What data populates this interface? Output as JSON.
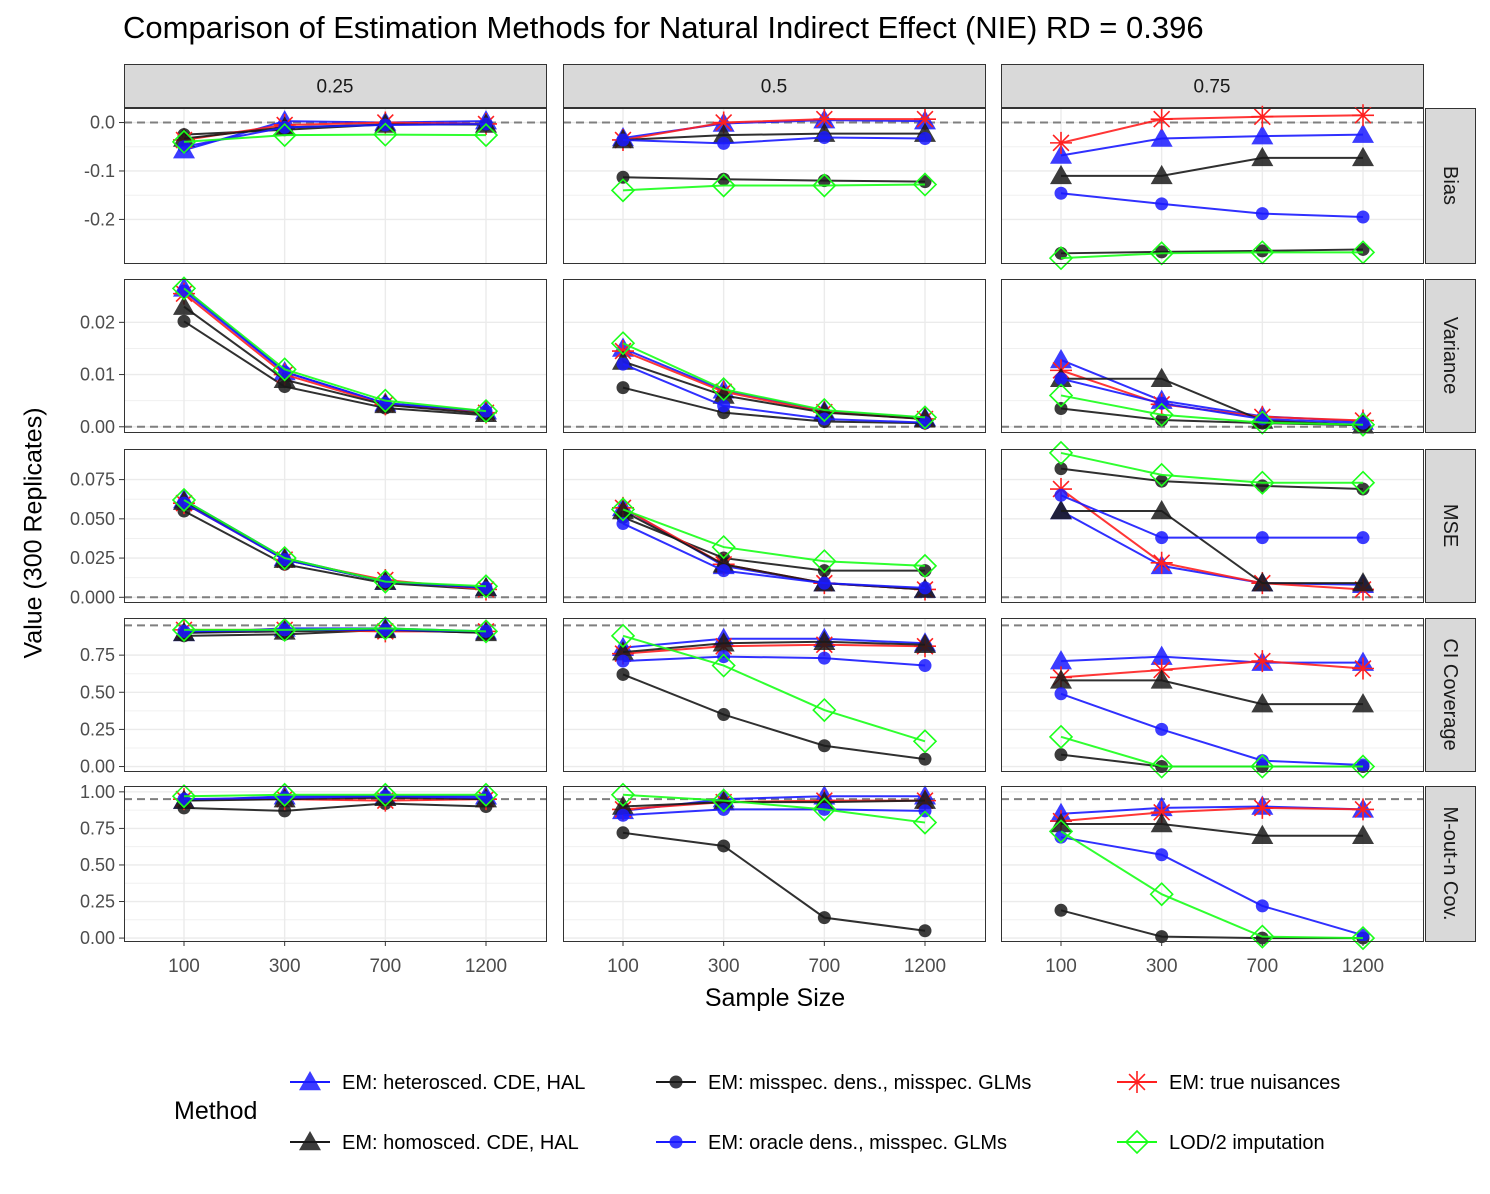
{
  "figure": {
    "title": "Comparison of Estimation Methods for Natural Indirect Effect (NIE) RD = 0.396",
    "xlabel": "Sample Size",
    "ylabel": "Value (300 Replicates)",
    "legend_title": "Method"
  },
  "chart_data": {
    "type": "line",
    "facet_columns": [
      "0.25",
      "0.5",
      "0.75"
    ],
    "facet_rows": [
      "Bias",
      "Variance",
      "MSE",
      "CI  Coverage",
      "M-out-n  Cov."
    ],
    "x": [
      100,
      300,
      700,
      1200
    ],
    "x_tick_labels": [
      "100",
      "300",
      "700",
      "1200"
    ],
    "grid": true,
    "legend_position": "bottom",
    "methods": [
      {
        "name": "EM: heterosced. CDE, HAL",
        "color": "#1a1aff",
        "shape": "triangle"
      },
      {
        "name": "EM: misspec. dens., misspec. GLMs",
        "color": "#1a1a1a",
        "shape": "circle"
      },
      {
        "name": "EM: true nuisances",
        "color": "#ff2020",
        "shape": "star"
      },
      {
        "name": "EM: homosced. CDE, HAL",
        "color": "#1a1a1a",
        "shape": "triangle"
      },
      {
        "name": "EM: oracle dens., misspec. GLMs",
        "color": "#1a1aff",
        "shape": "circle"
      },
      {
        "name": "LOD/2 imputation",
        "color": "#1aff1a",
        "shape": "diamond"
      }
    ],
    "rows": [
      {
        "metric": "Bias",
        "ylim": [
          -0.29,
          0.03
        ],
        "yticks": [
          0.0,
          -0.1,
          -0.2
        ],
        "ytick_labels": [
          "0.0",
          "-0.1",
          "-0.2"
        ],
        "reference_line": 0,
        "panels": [
          {
            "series": [
              [
                -0.057,
                0.003,
                0.0,
                0.003
              ],
              [
                -0.025,
                -0.015,
                -0.004,
                -0.004
              ],
              [
                -0.036,
                -0.005,
                0.0,
                -0.003
              ],
              [
                -0.033,
                -0.01,
                -0.004,
                -0.004
              ],
              [
                -0.05,
                -0.01,
                -0.005,
                -0.003
              ],
              [
                -0.04,
                -0.026,
                -0.025,
                -0.026
              ]
            ]
          },
          {
            "series": [
              [
                -0.032,
                -0.002,
                0.005,
                0.003
              ],
              [
                -0.113,
                -0.117,
                -0.12,
                -0.122
              ],
              [
                -0.036,
                0.0,
                0.007,
                0.007
              ],
              [
                -0.036,
                -0.026,
                -0.023,
                -0.023
              ],
              [
                -0.036,
                -0.043,
                -0.031,
                -0.033
              ],
              [
                -0.14,
                -0.13,
                -0.13,
                -0.128
              ]
            ]
          },
          {
            "series": [
              [
                -0.068,
                -0.033,
                -0.028,
                -0.025
              ],
              [
                -0.27,
                -0.267,
                -0.265,
                -0.262
              ],
              [
                -0.042,
                0.007,
                0.012,
                0.015
              ],
              [
                -0.11,
                -0.11,
                -0.073,
                -0.073
              ],
              [
                -0.146,
                -0.168,
                -0.188,
                -0.195
              ],
              [
                -0.28,
                -0.27,
                -0.268,
                -0.268
              ]
            ]
          }
        ]
      },
      {
        "metric": "Variance",
        "ylim": [
          -0.001,
          0.0283
        ],
        "yticks": [
          0.02,
          0.01,
          0.0
        ],
        "ytick_labels": [
          "0.02",
          "0.01",
          "0.00"
        ],
        "reference_line": 0,
        "panels": [
          {
            "series": [
              [
                0.0265,
                0.0105,
                0.0045,
                0.003
              ],
              [
                0.0202,
                0.0077,
                0.0036,
                0.0022
              ],
              [
                0.0255,
                0.01,
                0.0043,
                0.0027
              ],
              [
                0.023,
                0.009,
                0.0042,
                0.0025
              ],
              [
                0.026,
                0.0105,
                0.0045,
                0.003
              ],
              [
                0.0265,
                0.011,
                0.005,
                0.003
              ]
            ]
          },
          {
            "series": [
              [
                0.015,
                0.007,
                0.003,
                0.0017
              ],
              [
                0.0075,
                0.0027,
                0.001,
                0.0007
              ],
              [
                0.0145,
                0.0067,
                0.0028,
                0.0015
              ],
              [
                0.0125,
                0.006,
                0.0027,
                0.0015
              ],
              [
                0.012,
                0.004,
                0.0015,
                0.0008
              ],
              [
                0.016,
                0.0072,
                0.0032,
                0.0018
              ]
            ]
          },
          {
            "series": [
              [
                0.0128,
                0.005,
                0.002,
                0.001
              ],
              [
                0.0035,
                0.0013,
                0.0007,
                0.0003
              ],
              [
                0.0108,
                0.0043,
                0.0019,
                0.0012
              ],
              [
                0.0092,
                0.0092,
                0.0012,
                0.0003
              ],
              [
                0.0092,
                0.0045,
                0.0015,
                0.0007
              ],
              [
                0.006,
                0.0023,
                0.0008,
                0.0004
              ]
            ]
          }
        ]
      },
      {
        "metric": "MSE",
        "ylim": [
          -0.003,
          0.0945
        ],
        "yticks": [
          0.075,
          0.05,
          0.025,
          0.0
        ],
        "ytick_labels": [
          "0.075",
          "0.050",
          "0.025",
          "0.000"
        ],
        "reference_line": 0,
        "panels": [
          {
            "series": [
              [
                0.062,
                0.025,
                0.01,
                0.006
              ],
              [
                0.055,
                0.021,
                0.009,
                0.005
              ],
              [
                0.06,
                0.024,
                0.011,
                0.005
              ],
              [
                0.061,
                0.024,
                0.01,
                0.006
              ],
              [
                0.06,
                0.024,
                0.01,
                0.006
              ],
              [
                0.062,
                0.025,
                0.01,
                0.007
              ]
            ]
          },
          {
            "series": [
              [
                0.057,
                0.02,
                0.009,
                0.005
              ],
              [
                0.051,
                0.025,
                0.017,
                0.017
              ],
              [
                0.057,
                0.021,
                0.009,
                0.005
              ],
              [
                0.055,
                0.021,
                0.009,
                0.005
              ],
              [
                0.047,
                0.017,
                0.009,
                0.006
              ],
              [
                0.056,
                0.032,
                0.023,
                0.02
              ]
            ]
          },
          {
            "series": [
              [
                0.055,
                0.02,
                0.009,
                0.008
              ],
              [
                0.082,
                0.074,
                0.071,
                0.069
              ],
              [
                0.069,
                0.022,
                0.009,
                0.005
              ],
              [
                0.055,
                0.055,
                0.009,
                0.009
              ],
              [
                0.065,
                0.038,
                0.038,
                0.038
              ],
              [
                0.092,
                0.078,
                0.073,
                0.073
              ]
            ]
          }
        ]
      },
      {
        "metric": "CI  Coverage",
        "ylim": [
          -0.03,
          1.0
        ],
        "yticks": [
          0.75,
          0.5,
          0.25,
          0.0
        ],
        "ytick_labels": [
          "0.75",
          "0.50",
          "0.25",
          "0.00"
        ],
        "reference_line": 0.95,
        "panels": [
          {
            "series": [
              [
                0.9,
                0.93,
                0.93,
                0.91
              ],
              [
                0.88,
                0.89,
                0.92,
                0.9
              ],
              [
                0.92,
                0.92,
                0.91,
                0.91
              ],
              [
                0.9,
                0.91,
                0.92,
                0.9
              ],
              [
                0.91,
                0.92,
                0.92,
                0.91
              ],
              [
                0.92,
                0.92,
                0.93,
                0.91
              ]
            ]
          },
          {
            "series": [
              [
                0.8,
                0.86,
                0.86,
                0.83
              ],
              [
                0.62,
                0.35,
                0.14,
                0.05
              ],
              [
                0.76,
                0.81,
                0.82,
                0.81
              ],
              [
                0.77,
                0.83,
                0.84,
                0.82
              ],
              [
                0.71,
                0.74,
                0.73,
                0.68
              ],
              [
                0.88,
                0.68,
                0.38,
                0.17
              ]
            ]
          },
          {
            "series": [
              [
                0.71,
                0.74,
                0.7,
                0.7
              ],
              [
                0.08,
                0.0,
                0.0,
                0.0
              ],
              [
                0.6,
                0.65,
                0.71,
                0.66
              ],
              [
                0.58,
                0.58,
                0.42,
                0.42
              ],
              [
                0.49,
                0.25,
                0.04,
                0.01
              ],
              [
                0.2,
                0.0,
                0.0,
                0.0
              ]
            ]
          }
        ]
      },
      {
        "metric": "M-out-n  Cov.",
        "ylim": [
          -0.02,
          1.04
        ],
        "yticks": [
          1.0,
          0.75,
          0.5,
          0.25,
          0.0
        ],
        "ytick_labels": [
          "1.00",
          "0.75",
          "0.50",
          "0.25",
          "0.00"
        ],
        "reference_line": 0.95,
        "panels": [
          {
            "series": [
              [
                0.94,
                0.97,
                0.97,
                0.97
              ],
              [
                0.89,
                0.87,
                0.92,
                0.9
              ],
              [
                0.95,
                0.95,
                0.94,
                0.95
              ],
              [
                0.94,
                0.95,
                0.96,
                0.95
              ],
              [
                0.95,
                0.96,
                0.97,
                0.96
              ],
              [
                0.97,
                0.98,
                0.98,
                0.98
              ]
            ]
          },
          {
            "series": [
              [
                0.87,
                0.95,
                0.97,
                0.97
              ],
              [
                0.72,
                0.63,
                0.14,
                0.05
              ],
              [
                0.88,
                0.93,
                0.94,
                0.94
              ],
              [
                0.9,
                0.93,
                0.93,
                0.94
              ],
              [
                0.84,
                0.88,
                0.88,
                0.87
              ],
              [
                0.98,
                0.94,
                0.88,
                0.79
              ]
            ]
          },
          {
            "series": [
              [
                0.85,
                0.89,
                0.9,
                0.88
              ],
              [
                0.19,
                0.01,
                0.0,
                0.0
              ],
              [
                0.8,
                0.86,
                0.89,
                0.88
              ],
              [
                0.78,
                0.78,
                0.7,
                0.7
              ],
              [
                0.69,
                0.57,
                0.22,
                0.02
              ],
              [
                0.73,
                0.3,
                0.01,
                0.0
              ]
            ]
          }
        ]
      }
    ]
  }
}
